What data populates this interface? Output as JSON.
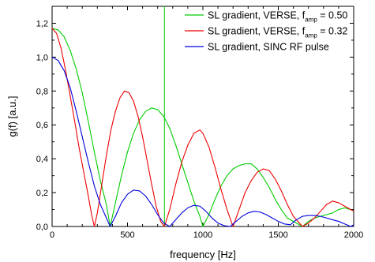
{
  "chart_data": {
    "type": "line",
    "xlabel": "frequency [Hz]",
    "ylabel": "g(f) [a.u.]",
    "xlim": [
      0,
      2000
    ],
    "ylim": [
      0,
      1.3
    ],
    "xticks": [
      {
        "v": 0,
        "label": "0"
      },
      {
        "v": 500,
        "label": "500"
      },
      {
        "v": 1000,
        "label": "1000"
      },
      {
        "v": 1500,
        "label": "1500"
      },
      {
        "v": 2000,
        "label": "2000"
      }
    ],
    "yticks": [
      {
        "v": 0.0,
        "label": "0,0"
      },
      {
        "v": 0.2,
        "label": "0,2"
      },
      {
        "v": 0.4,
        "label": "0,4"
      },
      {
        "v": 0.6,
        "label": "0,6"
      },
      {
        "v": 0.8,
        "label": "0,8"
      },
      {
        "v": 1.0,
        "label": "1,0"
      },
      {
        "v": 1.2,
        "label": "1,2"
      }
    ],
    "vline": {
      "x": 745,
      "color": "#00cc00"
    },
    "legend_position": "top-right",
    "series": [
      {
        "name_parts": [
          "SL gradient, VERSE, f",
          "amp",
          " = 0.50"
        ],
        "color": "#00cc00",
        "points": [
          [
            0,
            1.17
          ],
          [
            40,
            1.16
          ],
          [
            80,
            1.12
          ],
          [
            120,
            1.04
          ],
          [
            160,
            0.93
          ],
          [
            200,
            0.79
          ],
          [
            240,
            0.62
          ],
          [
            280,
            0.44
          ],
          [
            320,
            0.27
          ],
          [
            360,
            0.13
          ],
          [
            385,
            0.0
          ],
          [
            420,
            0.14
          ],
          [
            460,
            0.3
          ],
          [
            500,
            0.44
          ],
          [
            540,
            0.55
          ],
          [
            580,
            0.63
          ],
          [
            620,
            0.68
          ],
          [
            660,
            0.7
          ],
          [
            700,
            0.69
          ],
          [
            740,
            0.65
          ],
          [
            780,
            0.58
          ],
          [
            820,
            0.48
          ],
          [
            860,
            0.37
          ],
          [
            900,
            0.26
          ],
          [
            940,
            0.15
          ],
          [
            980,
            0.06
          ],
          [
            1000,
            0.0
          ],
          [
            1040,
            0.07
          ],
          [
            1080,
            0.16
          ],
          [
            1120,
            0.24
          ],
          [
            1160,
            0.3
          ],
          [
            1200,
            0.34
          ],
          [
            1240,
            0.36
          ],
          [
            1280,
            0.37
          ],
          [
            1320,
            0.37
          ],
          [
            1360,
            0.34
          ],
          [
            1400,
            0.29
          ],
          [
            1440,
            0.23
          ],
          [
            1480,
            0.16
          ],
          [
            1520,
            0.1
          ],
          [
            1560,
            0.05
          ],
          [
            1620,
            0.02
          ],
          [
            1660,
            0.0
          ],
          [
            1700,
            0.03
          ],
          [
            1740,
            0.05
          ],
          [
            1780,
            0.06
          ],
          [
            1820,
            0.07
          ],
          [
            1860,
            0.08
          ],
          [
            1900,
            0.1
          ],
          [
            1940,
            0.11
          ],
          [
            1980,
            0.1
          ],
          [
            2000,
            0.09
          ]
        ]
      },
      {
        "name_parts": [
          "SL gradient, VERSE, f",
          "amp",
          " = 0.32"
        ],
        "color": "#ee0000",
        "points": [
          [
            0,
            1.17
          ],
          [
            30,
            1.14
          ],
          [
            60,
            1.05
          ],
          [
            90,
            0.92
          ],
          [
            120,
            0.77
          ],
          [
            150,
            0.62
          ],
          [
            180,
            0.46
          ],
          [
            210,
            0.32
          ],
          [
            240,
            0.18
          ],
          [
            262,
            0.07
          ],
          [
            280,
            0.0
          ],
          [
            300,
            0.08
          ],
          [
            330,
            0.25
          ],
          [
            360,
            0.42
          ],
          [
            390,
            0.57
          ],
          [
            420,
            0.68
          ],
          [
            450,
            0.76
          ],
          [
            480,
            0.8
          ],
          [
            510,
            0.79
          ],
          [
            540,
            0.74
          ],
          [
            570,
            0.65
          ],
          [
            600,
            0.53
          ],
          [
            630,
            0.39
          ],
          [
            660,
            0.25
          ],
          [
            690,
            0.12
          ],
          [
            720,
            0.03
          ],
          [
            745,
            0.0
          ],
          [
            780,
            0.1
          ],
          [
            820,
            0.25
          ],
          [
            860,
            0.38
          ],
          [
            900,
            0.48
          ],
          [
            940,
            0.55
          ],
          [
            980,
            0.57
          ],
          [
            1000,
            0.55
          ],
          [
            1040,
            0.47
          ],
          [
            1080,
            0.35
          ],
          [
            1120,
            0.22
          ],
          [
            1160,
            0.1
          ],
          [
            1200,
            0.0
          ],
          [
            1240,
            0.1
          ],
          [
            1280,
            0.2
          ],
          [
            1320,
            0.27
          ],
          [
            1360,
            0.32
          ],
          [
            1400,
            0.34
          ],
          [
            1440,
            0.33
          ],
          [
            1480,
            0.28
          ],
          [
            1520,
            0.21
          ],
          [
            1560,
            0.13
          ],
          [
            1600,
            0.06
          ],
          [
            1640,
            0.02
          ],
          [
            1660,
            0.0
          ],
          [
            1700,
            0.02
          ],
          [
            1740,
            0.05
          ],
          [
            1780,
            0.09
          ],
          [
            1820,
            0.13
          ],
          [
            1860,
            0.15
          ],
          [
            1900,
            0.14
          ],
          [
            1940,
            0.12
          ],
          [
            1980,
            0.1
          ],
          [
            2000,
            0.09
          ]
        ]
      },
      {
        "name_parts": [
          "SL gradient, SINC RF pulse"
        ],
        "color": "#0000dd",
        "points": [
          [
            0,
            1.0
          ],
          [
            40,
            0.98
          ],
          [
            80,
            0.92
          ],
          [
            120,
            0.82
          ],
          [
            160,
            0.68
          ],
          [
            200,
            0.53
          ],
          [
            240,
            0.38
          ],
          [
            280,
            0.24
          ],
          [
            320,
            0.13
          ],
          [
            360,
            0.05
          ],
          [
            385,
            0.0
          ],
          [
            420,
            0.06
          ],
          [
            460,
            0.14
          ],
          [
            500,
            0.19
          ],
          [
            540,
            0.215
          ],
          [
            580,
            0.21
          ],
          [
            620,
            0.18
          ],
          [
            660,
            0.13
          ],
          [
            700,
            0.07
          ],
          [
            740,
            0.02
          ],
          [
            780,
            0.0
          ],
          [
            820,
            0.04
          ],
          [
            860,
            0.08
          ],
          [
            900,
            0.11
          ],
          [
            940,
            0.125
          ],
          [
            980,
            0.12
          ],
          [
            1020,
            0.09
          ],
          [
            1060,
            0.05
          ],
          [
            1100,
            0.02
          ],
          [
            1140,
            0.005
          ],
          [
            1180,
            0.0
          ],
          [
            1220,
            0.03
          ],
          [
            1260,
            0.06
          ],
          [
            1300,
            0.08
          ],
          [
            1340,
            0.09
          ],
          [
            1380,
            0.085
          ],
          [
            1420,
            0.07
          ],
          [
            1460,
            0.05
          ],
          [
            1500,
            0.03
          ],
          [
            1540,
            0.015
          ],
          [
            1580,
            0.01
          ],
          [
            1620,
            0.04
          ],
          [
            1660,
            0.06
          ],
          [
            1700,
            0.065
          ],
          [
            1740,
            0.065
          ],
          [
            1780,
            0.06
          ],
          [
            1820,
            0.05
          ],
          [
            1860,
            0.04
          ],
          [
            1900,
            0.03
          ],
          [
            1940,
            0.015
          ],
          [
            1980,
            0.0
          ],
          [
            2000,
            0.01
          ]
        ]
      }
    ]
  }
}
